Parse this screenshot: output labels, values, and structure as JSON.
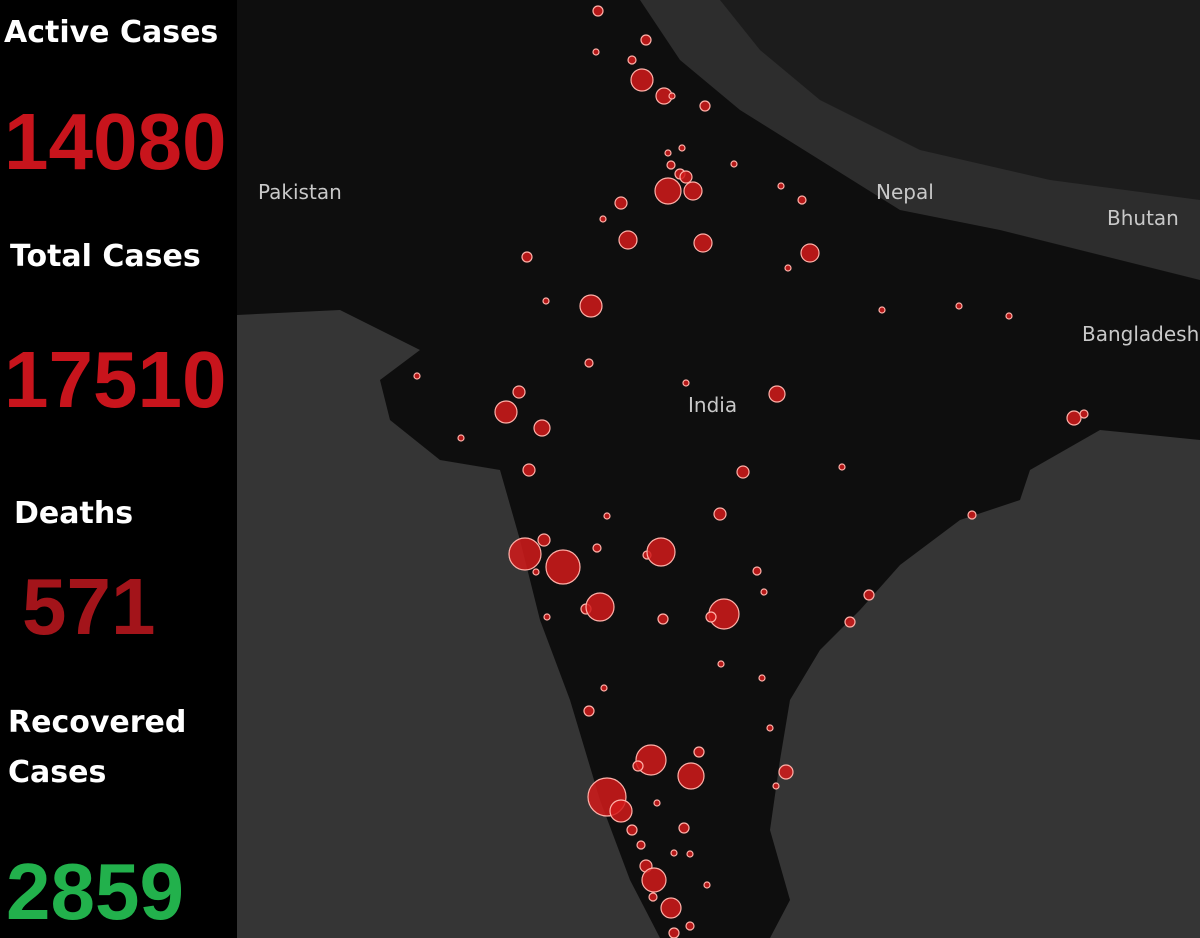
{
  "stats": [
    {
      "label": "Active Cases",
      "value": 14080
    },
    {
      "label": "Total Cases",
      "value": 17510
    },
    {
      "label": "Deaths",
      "value": 571
    },
    {
      "label": "Recovered Cases",
      "value": 2859
    }
  ],
  "map": {
    "labels": [
      "Pakistan",
      "Nepal",
      "Bhutan",
      "Bangladesh",
      "India"
    ]
  }
}
